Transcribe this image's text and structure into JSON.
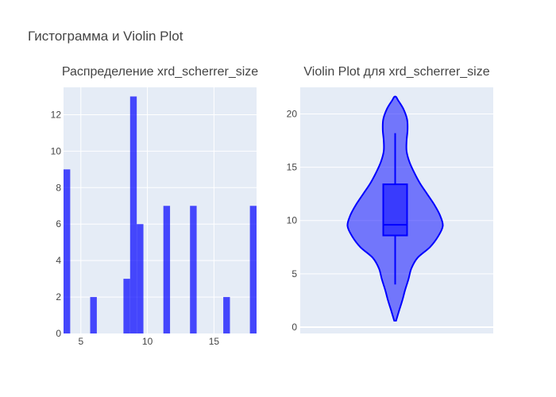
{
  "title": "Гистограмма и Violin Plot",
  "chart_data": [
    {
      "type": "bar",
      "title": "Распределение xrd_scherrer_size",
      "xlim": [
        3.7,
        18.2
      ],
      "ylim": [
        0,
        13.5
      ],
      "x_ticks": [
        5,
        10,
        15
      ],
      "y_ticks": [
        0,
        2,
        4,
        6,
        8,
        10,
        12
      ],
      "bin_width": 0.5,
      "bins": [
        {
          "x0": 3.7,
          "count": 9
        },
        {
          "x0": 5.7,
          "count": 2
        },
        {
          "x0": 8.2,
          "count": 3
        },
        {
          "x0": 8.7,
          "count": 13
        },
        {
          "x0": 9.2,
          "count": 6
        },
        {
          "x0": 11.2,
          "count": 7
        },
        {
          "x0": 13.2,
          "count": 7
        },
        {
          "x0": 15.7,
          "count": 2
        },
        {
          "x0": 17.7,
          "count": 7
        }
      ],
      "color": "#0000ff",
      "opacity": 0.7
    },
    {
      "type": "violin",
      "title": "Violin Plot для xrd_scherrer_size",
      "ylim": [
        -0.6,
        22.5
      ],
      "y_ticks": [
        0,
        5,
        10,
        15,
        20
      ],
      "box": {
        "q1": 8.6,
        "median": 9.6,
        "q3": 13.4,
        "whisker_low": 4.0,
        "whisker_high": 18.2
      },
      "kde_range": [
        0.6,
        21.6
      ],
      "density": [
        [
          0.6,
          0.02
        ],
        [
          1.5,
          0.08
        ],
        [
          2.5,
          0.15
        ],
        [
          3.5,
          0.21
        ],
        [
          4.5,
          0.28
        ],
        [
          5.5,
          0.34
        ],
        [
          6.5,
          0.47
        ],
        [
          7.5,
          0.73
        ],
        [
          8.5,
          0.9
        ],
        [
          9.5,
          1.0
        ],
        [
          10.5,
          0.94
        ],
        [
          11.5,
          0.82
        ],
        [
          12.5,
          0.67
        ],
        [
          13.5,
          0.52
        ],
        [
          14.5,
          0.4
        ],
        [
          15.5,
          0.3
        ],
        [
          16.5,
          0.24
        ],
        [
          17.5,
          0.24
        ],
        [
          18.5,
          0.26
        ],
        [
          19.5,
          0.25
        ],
        [
          20.5,
          0.17
        ],
        [
          21.3,
          0.06
        ],
        [
          21.6,
          0.02
        ]
      ],
      "fill_color": "#0000ff",
      "fill_opacity": 0.5,
      "line_color": "#0000ff"
    }
  ]
}
